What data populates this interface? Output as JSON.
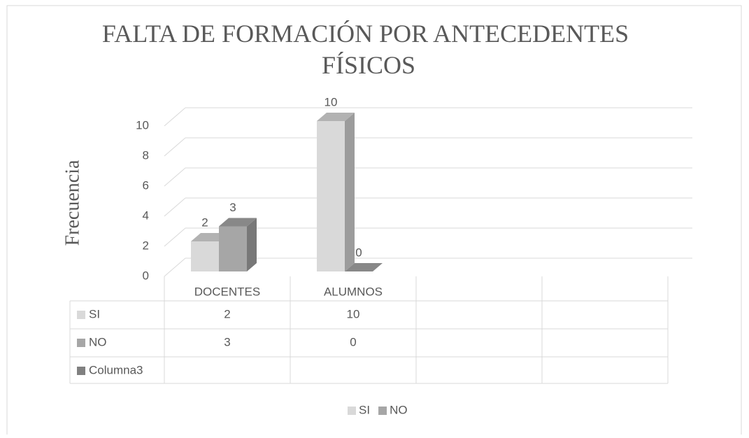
{
  "chart_data": {
    "type": "bar3d",
    "title": "FALTA DE FORMACIÓN POR ANTECEDENTES FÍSICOS",
    "ylabel": "Frecuencia",
    "categories": [
      "DOCENTES",
      "ALUMNOS",
      null,
      null
    ],
    "series": [
      {
        "name": "SI",
        "color": "#d9d9d9",
        "values": [
          2,
          10,
          null,
          null
        ]
      },
      {
        "name": "NO",
        "color": "#a6a6a6",
        "values": [
          3,
          0,
          null,
          null
        ]
      },
      {
        "name": "Columna3",
        "color": "#808080",
        "values": [
          null,
          null,
          null,
          null
        ]
      }
    ],
    "legend": [
      "SI",
      "NO"
    ],
    "ylim": [
      0,
      10
    ],
    "yticks": [
      0,
      2,
      4,
      6,
      8,
      10
    ],
    "grid": true
  }
}
